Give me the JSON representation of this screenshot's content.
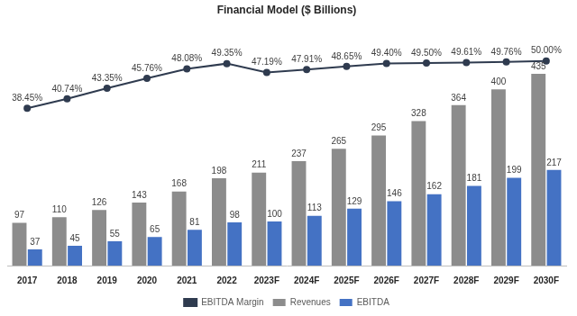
{
  "chart_data": {
    "type": "bar",
    "title": "Financial Model ($ Billions)",
    "categories": [
      "2017",
      "2018",
      "2019",
      "2020",
      "2021",
      "2022",
      "2023F",
      "2024F",
      "2025F",
      "2026F",
      "2027F",
      "2028F",
      "2029F",
      "2030F"
    ],
    "series": [
      {
        "name": "Revenues",
        "type": "bar",
        "color": "#8c8c8c",
        "values": [
          97,
          110,
          126,
          143,
          168,
          198,
          211,
          237,
          265,
          295,
          328,
          364,
          400,
          435
        ]
      },
      {
        "name": "EBITDA",
        "type": "bar",
        "color": "#4472c4",
        "values": [
          37,
          45,
          55,
          65,
          81,
          98,
          100,
          113,
          129,
          146,
          162,
          181,
          199,
          217
        ]
      },
      {
        "name": "EBITDA Margin",
        "type": "line",
        "color": "#2f3b4f",
        "marker": "circle",
        "axis": "y2",
        "values": [
          38.45,
          40.74,
          43.35,
          45.76,
          48.08,
          49.35,
          47.19,
          47.91,
          48.65,
          49.4,
          49.5,
          49.61,
          49.76,
          50.0
        ],
        "value_labels": [
          "38.45%",
          "40.74%",
          "43.35%",
          "45.76%",
          "48.08%",
          "49.35%",
          "47.19%",
          "47.91%",
          "48.65%",
          "49.40%",
          "49.50%",
          "49.61%",
          "49.76%",
          "50.00%"
        ]
      }
    ],
    "ylim": [
      0,
      520
    ],
    "y2lim": [
      0,
      56
    ],
    "grid": false,
    "legend": "bottom",
    "data_labels": true,
    "tick_labels": "x"
  }
}
